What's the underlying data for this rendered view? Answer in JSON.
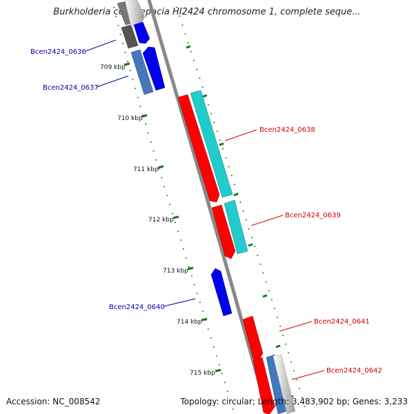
{
  "title": "Burkholderia cenocepacia HI2424 chromosome 1, complete seque...",
  "footer": {
    "accession": "Accession: NC_008542",
    "summary": "Topology: circular; Length: 3,483,902 bp; Genes: 3,233"
  },
  "colors": {
    "forward_gene": "#ff0000",
    "forward_cds": "#22cccc",
    "reverse_gene": "#0000ee",
    "reverse_cds": "#4477bb",
    "other_gene": "#666666",
    "forward_label": "#cc0000",
    "reverse_label": "#0000aa",
    "backbone": "#888888",
    "tick": "#117711"
  },
  "scale_ticks": [
    "709 kbp",
    "710 kbp",
    "711 kbp",
    "712 kbp",
    "713 kbp",
    "714 kbp",
    "715 kbp"
  ],
  "genes": [
    {
      "label": "Bcen2424_0636",
      "strand": "reverse"
    },
    {
      "label": "Bcen2424_0637",
      "strand": "reverse"
    },
    {
      "label": "Bcen2424_0638",
      "strand": "forward"
    },
    {
      "label": "Bcen2424_0639",
      "strand": "forward"
    },
    {
      "label": "Bcen2424_0640",
      "strand": "reverse"
    },
    {
      "label": "Bcen2424_0641",
      "strand": "forward"
    },
    {
      "label": "Bcen2424_0642",
      "strand": "forward"
    }
  ]
}
